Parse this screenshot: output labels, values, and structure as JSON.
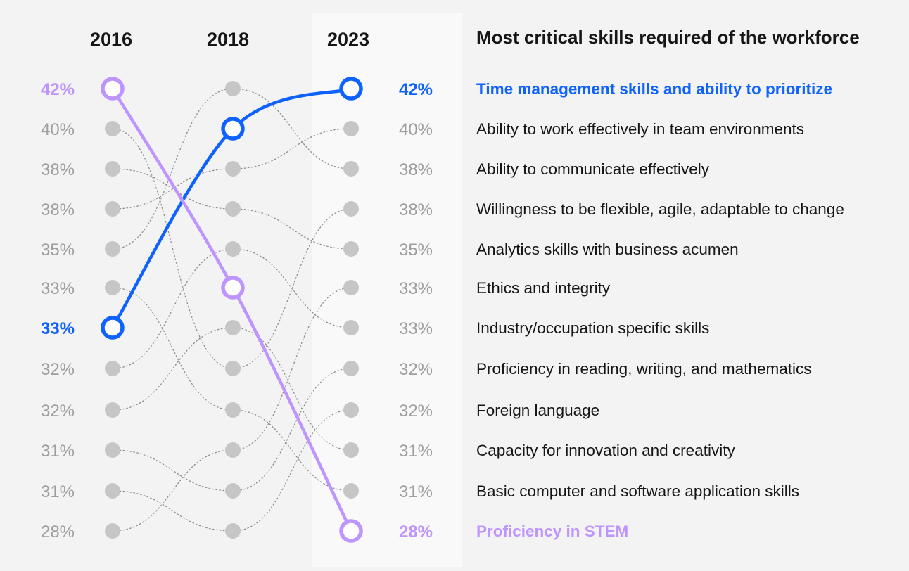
{
  "chart_data": {
    "type": "slope",
    "title": "Most critical skills required of the workforce",
    "years": [
      "2016",
      "2018",
      "2023"
    ],
    "labels_2016": [
      "42%",
      "40%",
      "38%",
      "38%",
      "35%",
      "33%",
      "33%",
      "32%",
      "32%",
      "31%",
      "31%",
      "28%"
    ],
    "labels_2023": [
      "42%",
      "40%",
      "38%",
      "38%",
      "35%",
      "33%",
      "33%",
      "32%",
      "32%",
      "31%",
      "31%",
      "28%"
    ],
    "skills": [
      "Time management skills and ability to prioritize",
      "Ability to work effectively in team environments",
      "Ability to communicate effectively",
      "Willingness to be flexible, agile, adaptable to change",
      "Analytics skills with business acumen",
      "Ethics and integrity",
      "Industry/occupation specific skills",
      "Proficiency in reading, writing, and mathematics",
      "Foreign language",
      "Capacity for innovation and creativity",
      "Basic computer and software application skills",
      "Proficiency in STEM"
    ],
    "rank_paths": [
      [
        6,
        1,
        0
      ],
      [
        0,
        5,
        11
      ],
      [
        1,
        7,
        3
      ],
      [
        2,
        3,
        4
      ],
      [
        3,
        2,
        1
      ],
      [
        4,
        0,
        2
      ],
      [
        5,
        8,
        10
      ],
      [
        7,
        4,
        6
      ],
      [
        8,
        6,
        9
      ],
      [
        9,
        10,
        7
      ],
      [
        10,
        11,
        8
      ],
      [
        11,
        9,
        5
      ]
    ],
    "highlights": [
      {
        "path_index": 0,
        "color": "#0f62fe"
      },
      {
        "path_index": 1,
        "color": "#be95ff"
      }
    ],
    "colors": {
      "background": "#f3f3f3",
      "column_2023_background": "#f9f9f9",
      "dot": "#c6c6c6",
      "connector": "#8d8d8d",
      "label_gray": "#9e9e9e",
      "text": "#161616",
      "highlight_blue": "#0f62fe",
      "highlight_purple": "#be95ff"
    }
  }
}
